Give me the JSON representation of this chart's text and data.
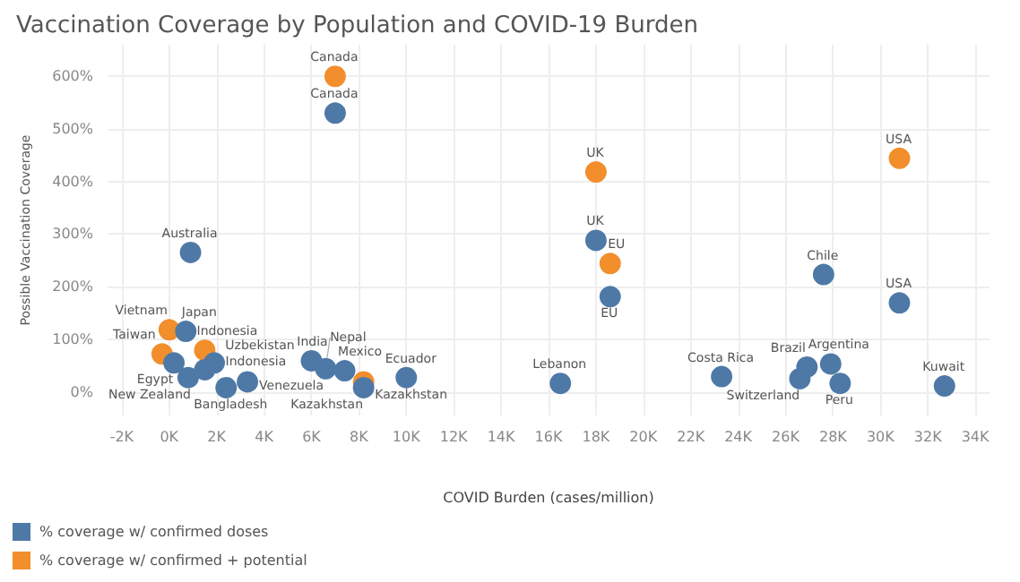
{
  "chart_data": {
    "type": "scatter",
    "title": "Vaccination Coverage by Population and COVID-19 Burden",
    "xlabel": "COVID Burden (cases/million)",
    "ylabel": "Possible Vaccination Coverage",
    "series": [
      {
        "name": "% coverage w/ confirmed doses",
        "color": "#4e79a7",
        "x": [
          7000,
          900,
          18000,
          18600,
          27600,
          30800,
          16500,
          23300,
          26900,
          26600,
          27900,
          28300,
          32700,
          700,
          200,
          800,
          1500,
          1900,
          2400,
          3300,
          6000,
          6600,
          7400,
          8200,
          10000
        ],
        "values": [
          530,
          265,
          288,
          181,
          223,
          169,
          16,
          29,
          47,
          25,
          53,
          16,
          11,
          115,
          55,
          27,
          42,
          55,
          8,
          19,
          59,
          44,
          40,
          8,
          27
        ]
      },
      {
        "name": "% coverage w/ confirmed + potential",
        "color": "#f28e2b",
        "x": [
          7000,
          18000,
          18600,
          30800,
          0,
          -300,
          1500,
          8200
        ],
        "values": [
          600,
          418,
          244,
          444,
          118,
          72,
          79,
          19
        ]
      }
    ],
    "annotations": [
      {
        "text": "Canada",
        "x": 7000,
        "y": 600
      },
      {
        "text": "Canada",
        "x": 7000,
        "y": 530
      },
      {
        "text": "Australia",
        "x": 900,
        "y": 265
      },
      {
        "text": "UK",
        "x": 18000,
        "y": 418
      },
      {
        "text": "UK",
        "x": 18000,
        "y": 288
      },
      {
        "text": "EU",
        "x": 18600,
        "y": 244
      },
      {
        "text": "EU",
        "x": 18600,
        "y": 181
      },
      {
        "text": "Chile",
        "x": 27600,
        "y": 223
      },
      {
        "text": "USA",
        "x": 30800,
        "y": 444
      },
      {
        "text": "USA",
        "x": 30800,
        "y": 169
      },
      {
        "text": "Lebanon",
        "x": 16500,
        "y": 16
      },
      {
        "text": "Costa Rica",
        "x": 23300,
        "y": 29
      },
      {
        "text": "Brazil",
        "x": 26900,
        "y": 47
      },
      {
        "text": "Switzerland",
        "x": 26600,
        "y": 25
      },
      {
        "text": "Argentina",
        "x": 27900,
        "y": 53
      },
      {
        "text": "Peru",
        "x": 28300,
        "y": 16
      },
      {
        "text": "Kuwait",
        "x": 32700,
        "y": 11
      },
      {
        "text": "Japan",
        "x": 700,
        "y": 115
      },
      {
        "text": "Vietnam",
        "x": 0,
        "y": 118
      },
      {
        "text": "Taiwan",
        "x": -300,
        "y": 72
      },
      {
        "text": "Egypt",
        "x": 200,
        "y": 55
      },
      {
        "text": "New Zealand",
        "x": 800,
        "y": 27
      },
      {
        "text": "Indonesia",
        "x": 1500,
        "y": 79
      },
      {
        "text": "Indonesia",
        "x": 1500,
        "y": 42
      },
      {
        "text": "Uzbekistan",
        "x": 1900,
        "y": 55
      },
      {
        "text": "Bangladesh",
        "x": 2400,
        "y": 8
      },
      {
        "text": "Venezuela",
        "x": 3300,
        "y": 19
      },
      {
        "text": "India",
        "x": 6000,
        "y": 59
      },
      {
        "text": "Nepal",
        "x": 6600,
        "y": 44
      },
      {
        "text": "Mexico",
        "x": 7400,
        "y": 40
      },
      {
        "text": "Kazakhstan",
        "x": 8200,
        "y": 19
      },
      {
        "text": "Kazakhstan",
        "x": 8200,
        "y": 8
      },
      {
        "text": "Ecuador",
        "x": 10000,
        "y": 27
      }
    ],
    "xlim": [
      -2600,
      34600
    ],
    "xticks": [
      {
        "value": -2000,
        "label": "-2K"
      },
      {
        "value": 0,
        "label": "0K"
      },
      {
        "value": 2000,
        "label": "2K"
      },
      {
        "value": 4000,
        "label": "4K"
      },
      {
        "value": 6000,
        "label": "6K"
      },
      {
        "value": 8000,
        "label": "8K"
      },
      {
        "value": 10000,
        "label": "10K"
      },
      {
        "value": 12000,
        "label": "12K"
      },
      {
        "value": 14000,
        "label": "14K"
      },
      {
        "value": 16000,
        "label": "16K"
      },
      {
        "value": 18000,
        "label": "18K"
      },
      {
        "value": 20000,
        "label": "20K"
      },
      {
        "value": 22000,
        "label": "22K"
      },
      {
        "value": 24000,
        "label": "24K"
      },
      {
        "value": 26000,
        "label": "26K"
      },
      {
        "value": 28000,
        "label": "28K"
      },
      {
        "value": 30000,
        "label": "30K"
      },
      {
        "value": 32000,
        "label": "32K"
      },
      {
        "value": 34000,
        "label": "34K"
      }
    ],
    "ylim": [
      -45,
      660
    ],
    "yticks": [
      {
        "value": 0,
        "label": "0%"
      },
      {
        "value": 100,
        "label": "100%"
      },
      {
        "value": 200,
        "label": "200%"
      },
      {
        "value": 300,
        "label": "300%"
      },
      {
        "value": 400,
        "label": "400%"
      },
      {
        "value": 500,
        "label": "500%"
      },
      {
        "value": 600,
        "label": "600%"
      }
    ],
    "grid": true,
    "legend": "bottom left",
    "marker": "circle"
  }
}
